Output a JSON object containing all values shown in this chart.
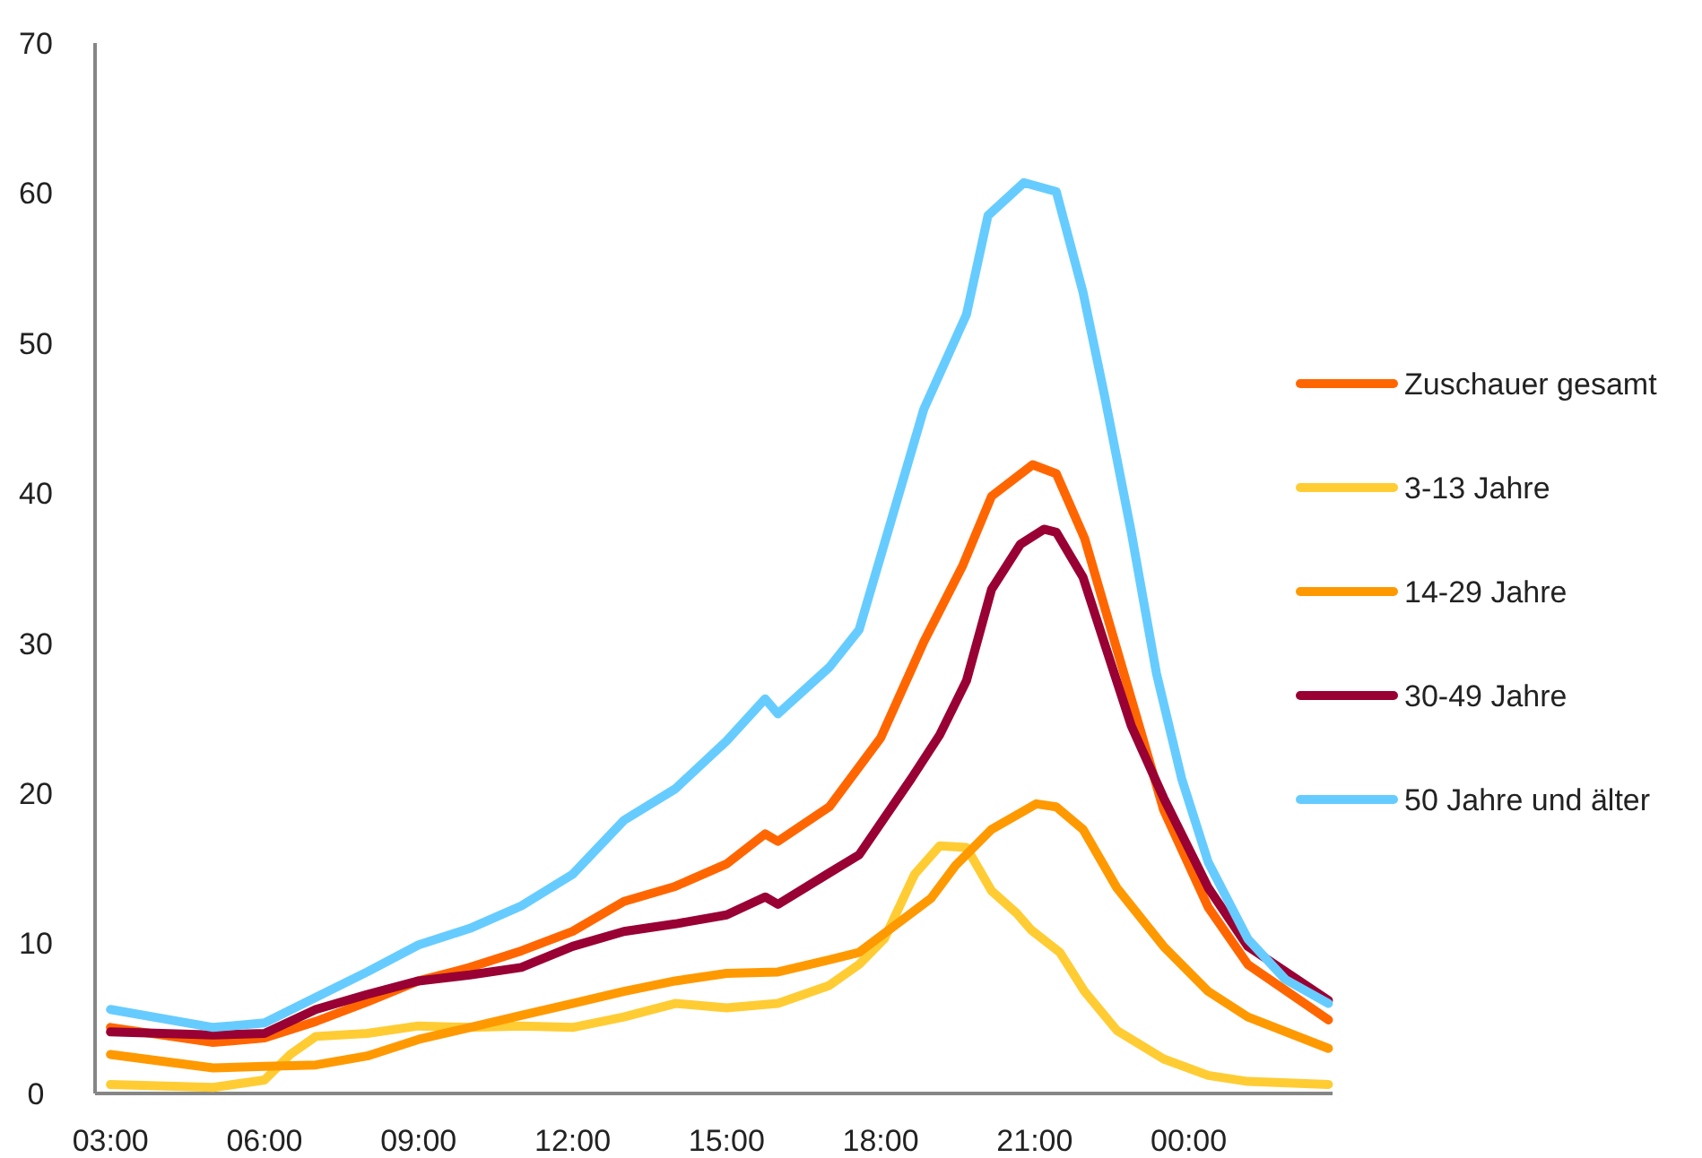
{
  "chart_data": {
    "type": "line",
    "xlim": [
      2.7,
      26.8
    ],
    "ylim": [
      0,
      70
    ],
    "xticks": [
      {
        "value": 3,
        "label": "03:00"
      },
      {
        "value": 6,
        "label": "06:00"
      },
      {
        "value": 9,
        "label": "09:00"
      },
      {
        "value": 12,
        "label": "12:00"
      },
      {
        "value": 15,
        "label": "15:00"
      },
      {
        "value": 18,
        "label": "18:00"
      },
      {
        "value": 21,
        "label": "21:00"
      },
      {
        "value": 24,
        "label": "00:00"
      }
    ],
    "yticks": [
      0,
      10,
      20,
      30,
      40,
      50,
      60,
      70
    ],
    "grid": false,
    "legend": "right",
    "line_style": "solid",
    "series": [
      {
        "name": "Zuschauer gesamt",
        "color": "#ff6600",
        "x": [
          3,
          5,
          6,
          7,
          8,
          9,
          10,
          11,
          12,
          13,
          14,
          15,
          15.75,
          16,
          17,
          18,
          18.84,
          19.6,
          20.16,
          20.96,
          21.42,
          21.97,
          22.88,
          23.51,
          24.38,
          25.15,
          26.72
        ],
        "values": [
          4.4,
          3.4,
          3.7,
          4.8,
          6.1,
          7.5,
          8.4,
          9.5,
          10.8,
          12.8,
          13.8,
          15.3,
          17.3,
          16.8,
          19.1,
          23.7,
          30.1,
          35.2,
          39.8,
          41.9,
          41.3,
          37.0,
          26.3,
          18.9,
          12.4,
          8.6,
          4.9
        ]
      },
      {
        "name": "3-13 Jahre",
        "color": "#ffcc33",
        "x": [
          3,
          5,
          6,
          6.5,
          7,
          8,
          9,
          10,
          11,
          12,
          13,
          14,
          15,
          16,
          17,
          17.58,
          18.07,
          18.66,
          19.15,
          19.67,
          20.16,
          20.65,
          20.93,
          21.49,
          21.97,
          22.6,
          23.51,
          24.38,
          25.15,
          26.72
        ],
        "values": [
          0.6,
          0.4,
          0.9,
          2.6,
          3.8,
          4.0,
          4.5,
          4.4,
          4.5,
          4.4,
          5.1,
          6.0,
          5.7,
          6.0,
          7.2,
          8.6,
          10.3,
          14.6,
          16.5,
          16.4,
          13.5,
          12.0,
          10.9,
          9.4,
          6.8,
          4.2,
          2.3,
          1.2,
          0.8,
          0.6
        ]
      },
      {
        "name": "14-29 Jahre",
        "color": "#ff9900",
        "x": [
          3,
          5,
          6,
          7,
          8,
          9,
          10,
          11,
          12,
          13,
          14,
          15,
          16,
          17,
          17.58,
          18.98,
          19.46,
          20.16,
          21.03,
          21.42,
          21.94,
          22.6,
          23.51,
          24.38,
          25.15,
          26.72
        ],
        "values": [
          2.6,
          1.7,
          1.8,
          1.9,
          2.5,
          3.6,
          4.4,
          5.2,
          6.0,
          6.8,
          7.5,
          8.0,
          8.1,
          8.9,
          9.4,
          13.0,
          15.2,
          17.6,
          19.3,
          19.1,
          17.6,
          13.7,
          9.8,
          6.8,
          5.1,
          3.0
        ]
      },
      {
        "name": "30-49 Jahre",
        "color": "#990033",
        "x": [
          3,
          5,
          6,
          7,
          8,
          9,
          10,
          11,
          12,
          13,
          14,
          15,
          15.75,
          16,
          17,
          17.58,
          18.6,
          19.15,
          19.67,
          20.16,
          20.72,
          21.18,
          21.42,
          21.94,
          22.88,
          23.51,
          24.38,
          25.15,
          26.72
        ],
        "values": [
          4.1,
          3.9,
          4.0,
          5.6,
          6.6,
          7.5,
          7.9,
          8.4,
          9.8,
          10.8,
          11.3,
          11.9,
          13.1,
          12.6,
          14.7,
          15.9,
          21.0,
          23.9,
          27.5,
          33.6,
          36.6,
          37.6,
          37.4,
          34.4,
          24.5,
          19.7,
          13.7,
          9.8,
          6.2
        ]
      },
      {
        "name": "50 Jahre und älter",
        "color": "#66ccff",
        "x": [
          3,
          5,
          6,
          7,
          8,
          9,
          10,
          11,
          12,
          13,
          14,
          15,
          15.75,
          16,
          17,
          17.58,
          18.84,
          19.67,
          20.09,
          20.79,
          21.42,
          21.94,
          22.36,
          22.88,
          23.37,
          23.86,
          24.38,
          25.15,
          25.88,
          26.72
        ],
        "values": [
          5.6,
          4.4,
          4.7,
          6.4,
          8.1,
          9.9,
          11.0,
          12.5,
          14.6,
          18.2,
          20.3,
          23.5,
          26.3,
          25.3,
          28.4,
          30.9,
          45.6,
          51.9,
          58.5,
          60.7,
          60.1,
          53.4,
          46.5,
          37.4,
          28.0,
          21.0,
          15.4,
          10.3,
          7.6,
          6.0
        ]
      }
    ]
  }
}
